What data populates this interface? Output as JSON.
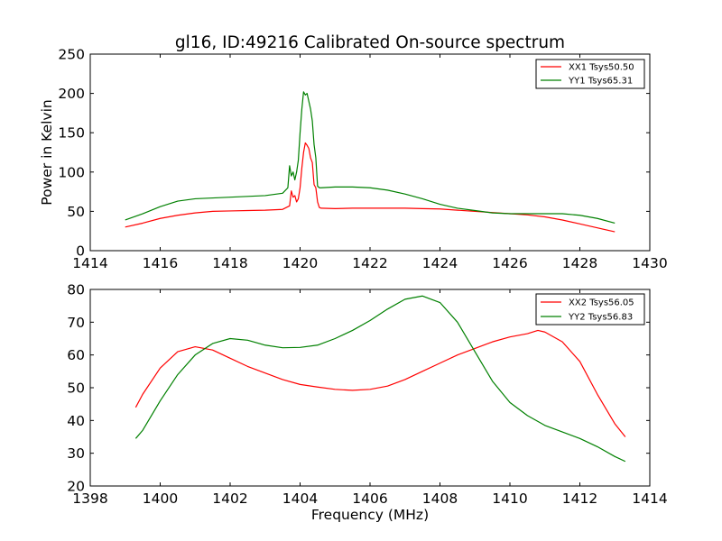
{
  "colors": {
    "red_series": "#ff0000",
    "green_series": "#008000"
  },
  "chart_data": [
    {
      "type": "line",
      "title": "gl16, ID:49216 Calibrated On-source spectrum",
      "xlabel": "",
      "ylabel": "Power in Kelvin",
      "xlim": [
        1414,
        1430
      ],
      "ylim": [
        0,
        250
      ],
      "xticks": [
        "1414",
        "1416",
        "1418",
        "1420",
        "1422",
        "1424",
        "1426",
        "1428",
        "1430"
      ],
      "yticks": [
        "0",
        "50",
        "100",
        "150",
        "200",
        "250"
      ],
      "grid": false,
      "legend_position": "top-right",
      "series": [
        {
          "name": "XX1 Tsys50.50",
          "color": "#ff0000",
          "x": [
            1415.0,
            1415.5,
            1416.0,
            1416.5,
            1417.0,
            1417.5,
            1418.0,
            1418.5,
            1419.0,
            1419.5,
            1419.7,
            1419.75,
            1419.8,
            1419.85,
            1419.9,
            1419.95,
            1420.0,
            1420.05,
            1420.1,
            1420.15,
            1420.2,
            1420.25,
            1420.3,
            1420.35,
            1420.4,
            1420.45,
            1420.5,
            1420.55,
            1420.6,
            1421.0,
            1421.5,
            1422.0,
            1422.5,
            1423.0,
            1423.5,
            1424.0,
            1424.5,
            1425.0,
            1425.5,
            1426.0,
            1426.5,
            1427.0,
            1427.5,
            1428.0,
            1428.5,
            1429.0
          ],
          "y": [
            30,
            35,
            41,
            45,
            48,
            50,
            50.5,
            51,
            51.5,
            52.5,
            57,
            76,
            68,
            70,
            62,
            66,
            80,
            105,
            125,
            137,
            134,
            130,
            118,
            112,
            84,
            80,
            62,
            55,
            54,
            53.5,
            54,
            54,
            54,
            54,
            53.5,
            53,
            51.5,
            50,
            48.5,
            47,
            45.5,
            43,
            39,
            34,
            29,
            24
          ]
        },
        {
          "name": "YY1 Tsys65.31",
          "color": "#008000",
          "x": [
            1415.0,
            1415.5,
            1416.0,
            1416.5,
            1417.0,
            1417.5,
            1418.0,
            1418.5,
            1419.0,
            1419.5,
            1419.65,
            1419.7,
            1419.75,
            1419.8,
            1419.85,
            1419.9,
            1419.95,
            1420.0,
            1420.05,
            1420.1,
            1420.15,
            1420.2,
            1420.25,
            1420.3,
            1420.35,
            1420.4,
            1420.45,
            1420.5,
            1420.55,
            1420.6,
            1421.0,
            1421.5,
            1422.0,
            1422.5,
            1423.0,
            1423.5,
            1424.0,
            1424.5,
            1425.0,
            1425.5,
            1426.0,
            1426.5,
            1427.0,
            1427.5,
            1428.0,
            1428.5,
            1429.0
          ],
          "y": [
            39,
            47,
            56,
            63,
            66,
            67,
            68,
            69,
            70,
            73,
            80,
            108,
            95,
            100,
            90,
            100,
            115,
            150,
            180,
            202,
            198,
            200,
            190,
            180,
            165,
            135,
            118,
            82,
            80,
            80,
            81,
            81,
            80,
            77,
            72,
            66,
            59,
            54,
            51,
            48,
            47,
            47,
            47,
            47,
            45,
            41,
            35
          ]
        }
      ]
    },
    {
      "type": "line",
      "title": "",
      "xlabel": "Frequency (MHz)",
      "ylabel": "",
      "xlim": [
        1398,
        1414
      ],
      "ylim": [
        20,
        80
      ],
      "xticks": [
        "1398",
        "1400",
        "1402",
        "1404",
        "1406",
        "1408",
        "1410",
        "1412",
        "1414"
      ],
      "yticks": [
        "20",
        "30",
        "40",
        "50",
        "60",
        "70",
        "80"
      ],
      "grid": false,
      "legend_position": "top-right",
      "series": [
        {
          "name": "XX2 Tsys56.05",
          "color": "#ff0000",
          "x": [
            1399.3,
            1399.5,
            1400.0,
            1400.5,
            1401.0,
            1401.5,
            1402.0,
            1402.5,
            1403.0,
            1403.5,
            1404.0,
            1404.5,
            1405.0,
            1405.5,
            1406.0,
            1406.5,
            1407.0,
            1407.5,
            1408.0,
            1408.5,
            1409.0,
            1409.5,
            1410.0,
            1410.5,
            1410.8,
            1411.0,
            1411.5,
            1412.0,
            1412.5,
            1413.0,
            1413.3
          ],
          "y": [
            44,
            48,
            56,
            61,
            62.5,
            61.5,
            59,
            56.5,
            54.5,
            52.5,
            51,
            50.2,
            49.5,
            49.2,
            49.5,
            50.5,
            52.5,
            55,
            57.5,
            60,
            62,
            64,
            65.5,
            66.5,
            67.5,
            67,
            64,
            58,
            48,
            39,
            35
          ]
        },
        {
          "name": "YY2 Tsys56.83",
          "color": "#008000",
          "x": [
            1399.3,
            1399.5,
            1400.0,
            1400.5,
            1401.0,
            1401.5,
            1402.0,
            1402.5,
            1403.0,
            1403.5,
            1404.0,
            1404.5,
            1405.0,
            1405.5,
            1406.0,
            1406.5,
            1407.0,
            1407.5,
            1408.0,
            1408.5,
            1409.0,
            1409.5,
            1410.0,
            1410.5,
            1411.0,
            1411.5,
            1412.0,
            1412.5,
            1413.0,
            1413.3
          ],
          "y": [
            34.5,
            37,
            46,
            54,
            60,
            63.5,
            65,
            64.5,
            63,
            62.2,
            62.3,
            63,
            65,
            67.5,
            70.5,
            74,
            77,
            78,
            76,
            70,
            61,
            52,
            45.5,
            41.5,
            38.5,
            36.5,
            34.5,
            32,
            29,
            27.5
          ]
        }
      ]
    }
  ]
}
